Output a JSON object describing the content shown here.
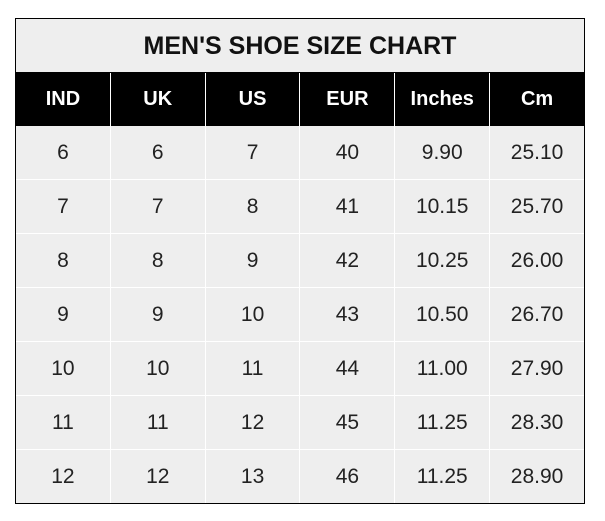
{
  "title": "MEN'S SHOE SIZE CHART",
  "columns": [
    "IND",
    "UK",
    "US",
    "EUR",
    "Inches",
    "Cm"
  ],
  "rows": [
    [
      "6",
      "6",
      "7",
      "40",
      "9.90",
      "25.10"
    ],
    [
      "7",
      "7",
      "8",
      "41",
      "10.15",
      "25.70"
    ],
    [
      "8",
      "8",
      "9",
      "42",
      "10.25",
      "26.00"
    ],
    [
      "9",
      "9",
      "10",
      "43",
      "10.50",
      "26.70"
    ],
    [
      "10",
      "10",
      "11",
      "44",
      "11.00",
      "27.90"
    ],
    [
      "11",
      "11",
      "12",
      "45",
      "11.25",
      "28.30"
    ],
    [
      "12",
      "12",
      "13",
      "46",
      "11.25",
      "28.90"
    ]
  ],
  "colors": {
    "header_bg": "#000000",
    "cell_bg": "#eeeeee",
    "grid": "#ffffff"
  }
}
